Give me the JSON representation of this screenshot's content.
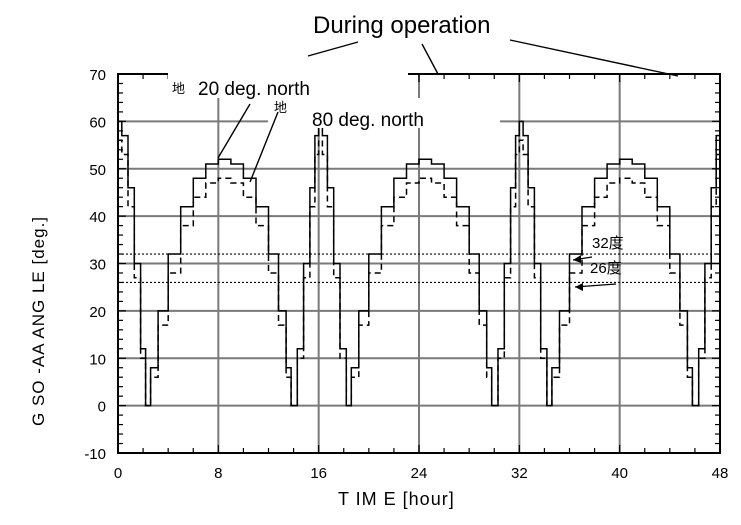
{
  "chart_data": {
    "type": "line",
    "title": "During operation",
    "xlabel": "T IM E  [hour]",
    "ylabel": "G SO -AA  ANG LE  [deg.]",
    "xlim": [
      0,
      48
    ],
    "ylim": [
      -10,
      70
    ],
    "x_ticks": [
      0,
      8,
      16,
      24,
      32,
      40,
      48
    ],
    "y_ticks": [
      -10,
      0,
      10,
      20,
      30,
      40,
      50,
      60,
      70
    ],
    "grid": true,
    "series": [
      {
        "name": "20 deg. north",
        "style": "solid",
        "x": [
          0,
          0.3,
          0.8,
          1.3,
          1.8,
          2.2,
          2.6,
          3.2,
          4,
          5,
          6,
          7,
          8,
          9,
          10,
          11,
          12,
          12.8,
          13.4,
          13.8,
          14.3,
          14.8,
          15.3,
          15.7,
          16,
          16.3,
          16.7,
          17.2,
          17.7,
          18.2,
          18.6,
          19.2,
          20,
          21,
          22,
          23,
          24,
          25,
          26,
          27,
          28,
          28.8,
          29.4,
          29.8,
          30.3,
          30.8,
          31.3,
          31.7,
          32,
          32.3,
          32.7,
          33.2,
          33.7,
          34.2,
          34.6,
          35.2,
          36,
          37,
          38,
          39,
          40,
          41,
          42,
          43,
          44,
          44.8,
          45.4,
          45.8,
          46.3,
          46.8,
          47.3,
          47.7,
          48
        ],
        "y": [
          60,
          57,
          46,
          30,
          12,
          0,
          8,
          20,
          32,
          42,
          48,
          51,
          52,
          51,
          48,
          42,
          32,
          20,
          8,
          0,
          12,
          30,
          46,
          57,
          60,
          57,
          46,
          30,
          12,
          0,
          8,
          20,
          32,
          42,
          48,
          51,
          52,
          51,
          48,
          42,
          32,
          20,
          8,
          0,
          12,
          30,
          46,
          57,
          60,
          57,
          46,
          30,
          12,
          0,
          8,
          20,
          32,
          42,
          48,
          51,
          52,
          51,
          48,
          42,
          32,
          20,
          8,
          0,
          12,
          30,
          46,
          57,
          60
        ]
      },
      {
        "name": "80 deg. north",
        "style": "dashed",
        "x": [
          0,
          0.3,
          0.8,
          1.3,
          1.8,
          2.2,
          2.6,
          3.2,
          4,
          5,
          6,
          7,
          8,
          9,
          10,
          11,
          12,
          12.8,
          13.4,
          13.8,
          14.3,
          14.8,
          15.3,
          15.7,
          16,
          16.3,
          16.7,
          17.2,
          17.7,
          18.2,
          18.6,
          19.2,
          20,
          21,
          22,
          23,
          24,
          25,
          26,
          27,
          28,
          28.8,
          29.4,
          29.8,
          30.3,
          30.8,
          31.3,
          31.7,
          32,
          32.3,
          32.7,
          33.2,
          33.7,
          34.2,
          34.6,
          35.2,
          36,
          37,
          38,
          39,
          40,
          41,
          42,
          43,
          44,
          44.8,
          45.4,
          45.8,
          46.3,
          46.8,
          47.3,
          47.7,
          48
        ],
        "y": [
          56,
          53,
          42,
          27,
          10,
          0,
          6,
          17,
          28,
          38,
          44,
          47,
          48,
          47,
          44,
          38,
          28,
          17,
          6,
          0,
          10,
          27,
          42,
          53,
          56,
          53,
          42,
          27,
          10,
          0,
          6,
          17,
          28,
          38,
          44,
          47,
          48,
          47,
          44,
          38,
          28,
          17,
          6,
          0,
          10,
          27,
          42,
          53,
          56,
          53,
          42,
          27,
          10,
          0,
          6,
          17,
          28,
          38,
          44,
          47,
          48,
          47,
          44,
          38,
          28,
          17,
          6,
          0,
          10,
          27,
          42,
          53,
          56
        ]
      }
    ],
    "reference_lines": [
      {
        "label": "32度",
        "y": 32,
        "style": "dotted"
      },
      {
        "label": "26度",
        "y": 26,
        "style": "dotted"
      }
    ],
    "legend_labels": {
      "prefix_1": "地",
      "series_1": "20 deg. north",
      "prefix_2": "地",
      "series_2": "80 deg. north"
    }
  }
}
